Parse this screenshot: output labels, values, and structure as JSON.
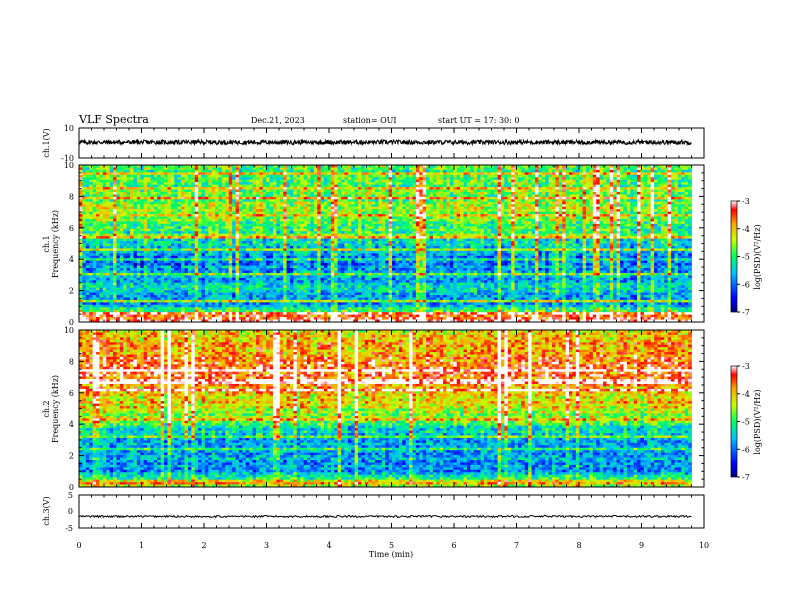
{
  "header": {
    "title": "VLF Spectra",
    "date": "Dec.21, 2023",
    "station": "station= OUI",
    "start": "start  UT =   17: 30: 0"
  },
  "chart_data": [
    {
      "type": "line",
      "panel": "ch1_waveform",
      "ylabel": "ch.1(V)",
      "ylim": [
        -10,
        10
      ],
      "yticks": [
        "10",
        "-10"
      ],
      "xlim": [
        0,
        9.8
      ],
      "mean_level_V": 0.5,
      "amplitude_V": 1.5,
      "color": "#000000"
    },
    {
      "type": "heatmap",
      "panel": "ch1_spectrogram",
      "ylabel_line1": "ch.1",
      "ylabel_line2": "Frequency (kHz)",
      "ylim": [
        0,
        10
      ],
      "yticks": [
        "0",
        "2",
        "4",
        "6",
        "8",
        "10"
      ],
      "xlim": [
        0,
        9.8
      ],
      "colorbar": {
        "label": "log(PSD)(V²/Hz)",
        "range": [
          -7,
          -3
        ],
        "ticks": [
          "-3",
          "-4",
          "-5",
          "-6",
          "-7"
        ]
      },
      "level_profile_by_frequency_kHz": [
        {
          "f": 0.3,
          "level": -3.5
        },
        {
          "f": 1.0,
          "level": -5.8
        },
        {
          "f": 2.0,
          "level": -5.5
        },
        {
          "f": 3.0,
          "level": -5.6
        },
        {
          "f": 4.0,
          "level": -6.0
        },
        {
          "f": 5.0,
          "level": -5.4
        },
        {
          "f": 6.0,
          "level": -5.0
        },
        {
          "f": 7.0,
          "level": -4.6
        },
        {
          "f": 8.0,
          "level": -4.7
        },
        {
          "f": 9.0,
          "level": -4.8
        },
        {
          "f": 10.0,
          "level": -4.9
        }
      ]
    },
    {
      "type": "heatmap",
      "panel": "ch2_spectrogram",
      "ylabel_line1": "ch.2",
      "ylabel_line2": "Frequency (kHz)",
      "ylim": [
        0,
        10
      ],
      "yticks": [
        "0",
        "2",
        "4",
        "6",
        "8",
        "10"
      ],
      "xlim": [
        0,
        9.8
      ],
      "colorbar": {
        "label": "log(PSD)(V²/Hz)",
        "range": [
          -7,
          -3
        ],
        "ticks": [
          "-3",
          "-4",
          "-5",
          "-6",
          "-7"
        ]
      },
      "level_profile_by_frequency_kHz": [
        {
          "f": 0.3,
          "level": -4.8
        },
        {
          "f": 1.0,
          "level": -5.8
        },
        {
          "f": 2.0,
          "level": -5.6
        },
        {
          "f": 3.0,
          "level": -5.9
        },
        {
          "f": 4.0,
          "level": -4.9
        },
        {
          "f": 5.0,
          "level": -4.3
        },
        {
          "f": 6.0,
          "level": -4.0
        },
        {
          "f": 7.0,
          "level": -3.6
        },
        {
          "f": 8.0,
          "level": -3.7
        },
        {
          "f": 9.0,
          "level": -3.9
        },
        {
          "f": 10.0,
          "level": -4.0
        }
      ]
    },
    {
      "type": "line",
      "panel": "ch3_waveform",
      "ylabel": "ch.3(V)",
      "ylim": [
        -5,
        5
      ],
      "yticks": [
        "5",
        "0",
        "-5"
      ],
      "xlim": [
        0,
        9.8
      ],
      "mean_level_V": -1.5,
      "amplitude_V": 0.3,
      "color": "#000000"
    }
  ],
  "xaxis": {
    "label": "Time (min)",
    "ticks": [
      "0",
      "1",
      "2",
      "3",
      "4",
      "5",
      "6",
      "7",
      "8",
      "9",
      "10"
    ],
    "range": [
      0,
      10
    ]
  }
}
